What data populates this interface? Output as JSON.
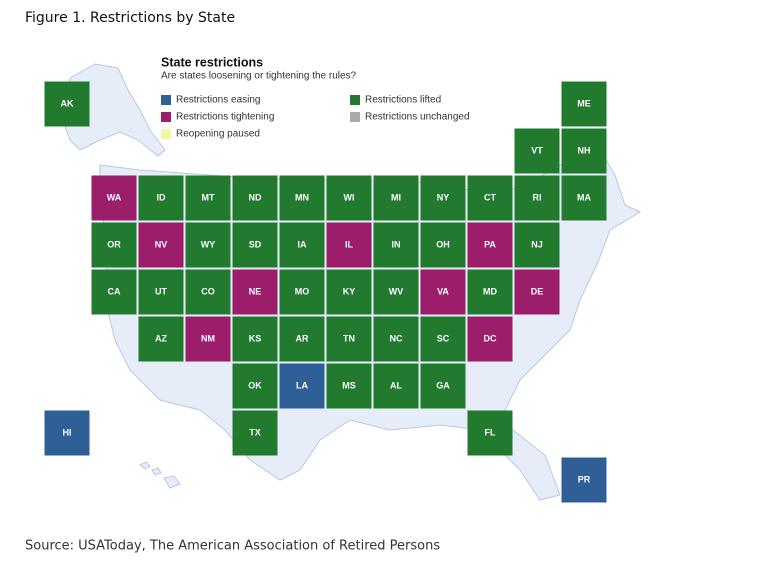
{
  "figure_title": "Figure 1. Restrictions by State",
  "map_title": "State restrictions",
  "map_subtitle": "Are states loosening or tightening the rules?",
  "legend": [
    {
      "label": "Restrictions easing",
      "color": "#2f5f97"
    },
    {
      "label": "Restrictions tightening",
      "color": "#9c1d6a"
    },
    {
      "label": "Reopening paused",
      "color": "#f6f4a6"
    },
    {
      "label": "Restrictions lifted",
      "color": "#217a2e"
    },
    {
      "label": "Restrictions unchanged",
      "color": "#aaaaaa"
    }
  ],
  "tiles": [
    {
      "label": "AK",
      "color": "#217a2e"
    },
    {
      "label": "ME",
      "color": "#217a2e"
    },
    {
      "label": "VT",
      "color": "#217a2e"
    },
    {
      "label": "NH",
      "color": "#217a2e"
    },
    {
      "label": "WA",
      "color": "#9c1d6a"
    },
    {
      "label": "ID",
      "color": "#217a2e"
    },
    {
      "label": "MT",
      "color": "#217a2e"
    },
    {
      "label": "ND",
      "color": "#217a2e"
    },
    {
      "label": "MN",
      "color": "#217a2e"
    },
    {
      "label": "WI",
      "color": "#217a2e"
    },
    {
      "label": "MI",
      "color": "#217a2e"
    },
    {
      "label": "NY",
      "color": "#217a2e"
    },
    {
      "label": "CT",
      "color": "#217a2e"
    },
    {
      "label": "RI",
      "color": "#217a2e"
    },
    {
      "label": "MA",
      "color": "#217a2e"
    },
    {
      "label": "OR",
      "color": "#217a2e"
    },
    {
      "label": "NV",
      "color": "#9c1d6a"
    },
    {
      "label": "WY",
      "color": "#217a2e"
    },
    {
      "label": "SD",
      "color": "#217a2e"
    },
    {
      "label": "IA",
      "color": "#217a2e"
    },
    {
      "label": "IL",
      "color": "#9c1d6a"
    },
    {
      "label": "IN",
      "color": "#217a2e"
    },
    {
      "label": "OH",
      "color": "#217a2e"
    },
    {
      "label": "PA",
      "color": "#9c1d6a"
    },
    {
      "label": "NJ",
      "color": "#217a2e"
    },
    {
      "label": "CA",
      "color": "#217a2e"
    },
    {
      "label": "UT",
      "color": "#217a2e"
    },
    {
      "label": "CO",
      "color": "#217a2e"
    },
    {
      "label": "NE",
      "color": "#9c1d6a"
    },
    {
      "label": "MO",
      "color": "#217a2e"
    },
    {
      "label": "KY",
      "color": "#217a2e"
    },
    {
      "label": "WV",
      "color": "#217a2e"
    },
    {
      "label": "VA",
      "color": "#9c1d6a"
    },
    {
      "label": "MD",
      "color": "#217a2e"
    },
    {
      "label": "DE",
      "color": "#9c1d6a"
    },
    {
      "label": "AZ",
      "color": "#217a2e"
    },
    {
      "label": "NM",
      "color": "#9c1d6a"
    },
    {
      "label": "KS",
      "color": "#217a2e"
    },
    {
      "label": "AR",
      "color": "#217a2e"
    },
    {
      "label": "TN",
      "color": "#217a2e"
    },
    {
      "label": "NC",
      "color": "#217a2e"
    },
    {
      "label": "SC",
      "color": "#217a2e"
    },
    {
      "label": "DC",
      "color": "#9c1d6a"
    },
    {
      "label": "OK",
      "color": "#217a2e"
    },
    {
      "label": "LA",
      "color": "#2f5f97"
    },
    {
      "label": "MS",
      "color": "#217a2e"
    },
    {
      "label": "AL",
      "color": "#217a2e"
    },
    {
      "label": "GA",
      "color": "#217a2e"
    },
    {
      "label": "HI",
      "color": "#2f5f97"
    },
    {
      "label": "TX",
      "color": "#217a2e"
    },
    {
      "label": "FL",
      "color": "#217a2e"
    },
    {
      "label": "PR",
      "color": "#2f5f97"
    }
  ],
  "source": "Source: USAToday, The American Association of Retired Persons"
}
